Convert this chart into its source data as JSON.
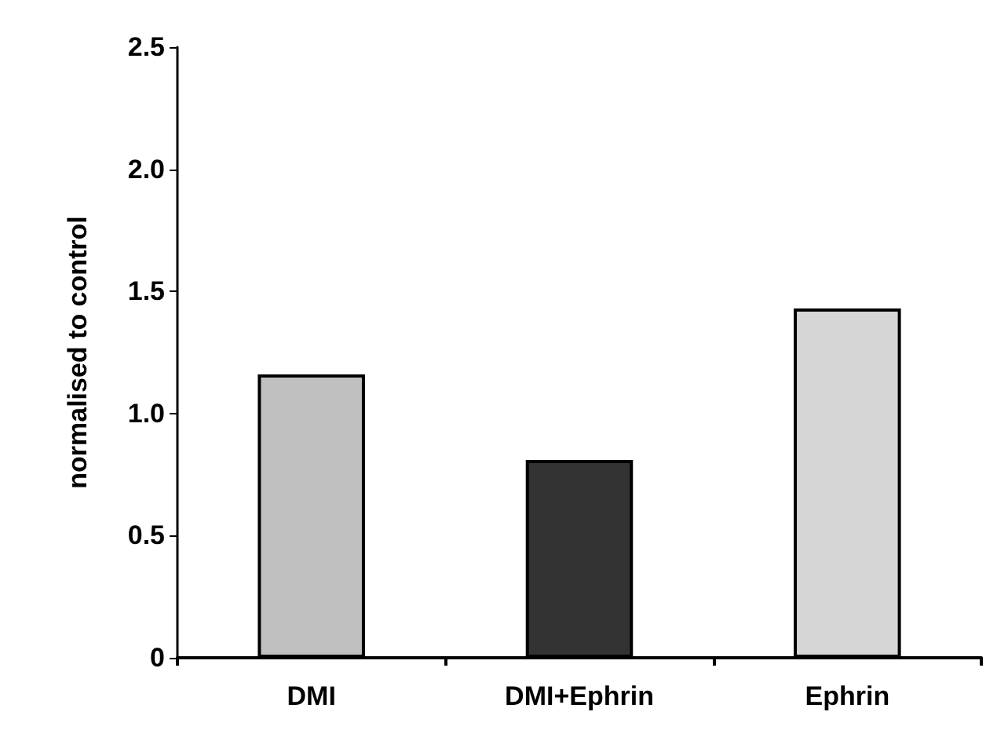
{
  "chart_data": {
    "type": "bar",
    "ylabel": "normalised to control",
    "categories": [
      "DMI",
      "DMI+Ephrin",
      "Ephrin"
    ],
    "values": [
      1.16,
      0.81,
      1.43
    ],
    "colors": [
      "#c0c0c0",
      "#333333",
      "#d6d6d6"
    ],
    "ylim": [
      0,
      2.5
    ],
    "yticks": [
      0,
      0.5,
      {
        "value": 1,
        "label": "1.0"
      },
      1.5,
      {
        "value": 2,
        "label": "2.0"
      },
      2.5
    ],
    "grid": false
  }
}
